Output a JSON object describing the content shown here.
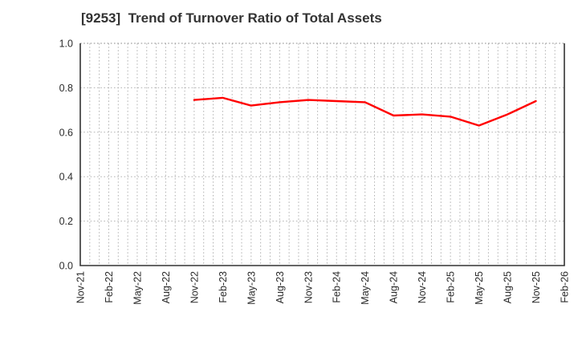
{
  "chart_data": {
    "type": "line",
    "title": "[9253]  Trend of Turnover Ratio of Total Assets",
    "xlabel": "",
    "ylabel": "",
    "x_categories": [
      "Nov-21",
      "Feb-22",
      "May-22",
      "Aug-22",
      "Nov-22",
      "Feb-23",
      "May-23",
      "Aug-23",
      "Nov-23",
      "Feb-24",
      "May-24",
      "Aug-24",
      "Nov-24",
      "Feb-25",
      "May-25",
      "Aug-25",
      "Nov-25",
      "Feb-26"
    ],
    "minor_gridlines_per_interval": 3,
    "ylim": [
      0.0,
      1.0
    ],
    "yticks": [
      0.0,
      0.2,
      0.4,
      0.6,
      0.8,
      1.0
    ],
    "grid": "dotted, both axes",
    "legend_position": "none",
    "series": [
      {
        "name": "Turnover Ratio of Total Assets",
        "color": "#ff0000",
        "start_category": "Nov-22",
        "start_index": 4,
        "x": [
          "Nov-22",
          "Feb-23",
          "May-23",
          "Aug-23",
          "Nov-23",
          "Feb-24",
          "May-24",
          "Aug-24",
          "Nov-24",
          "Feb-25",
          "May-25",
          "Aug-25",
          "Nov-25"
        ],
        "values": [
          0.745,
          0.755,
          0.72,
          0.735,
          0.745,
          0.74,
          0.735,
          0.675,
          0.68,
          0.67,
          0.63,
          0.68,
          0.74
        ]
      }
    ],
    "colors": {
      "line": "#ff0000",
      "grid": "#b3b3b3",
      "axis": "#333333",
      "text": "#2b2b2b",
      "background": "#ffffff"
    }
  }
}
